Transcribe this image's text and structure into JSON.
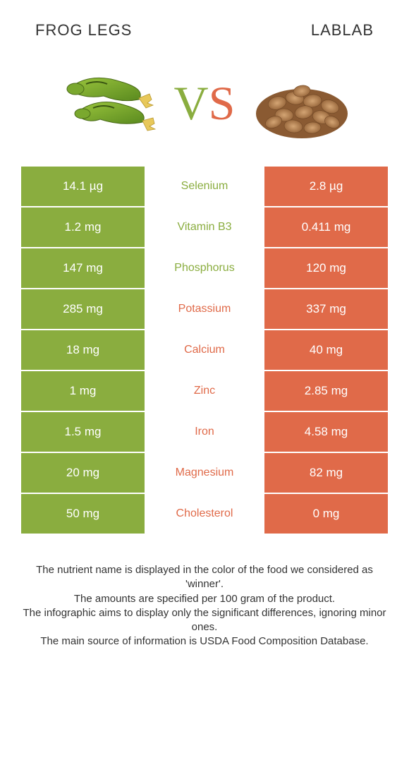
{
  "header": {
    "left": "FROG LEGS",
    "right": "LABLAB"
  },
  "vs": {
    "v": "V",
    "s": "S"
  },
  "colors": {
    "green": "#8aad3f",
    "orange": "#e06a49",
    "white": "#ffffff",
    "text": "#333333"
  },
  "rows": [
    {
      "left": "14.1 µg",
      "mid": "Selenium",
      "right": "2.8 µg",
      "winner": "green"
    },
    {
      "left": "1.2 mg",
      "mid": "Vitamin B3",
      "right": "0.411 mg",
      "winner": "green"
    },
    {
      "left": "147 mg",
      "mid": "Phosphorus",
      "right": "120 mg",
      "winner": "green"
    },
    {
      "left": "285 mg",
      "mid": "Potassium",
      "right": "337 mg",
      "winner": "orange"
    },
    {
      "left": "18 mg",
      "mid": "Calcium",
      "right": "40 mg",
      "winner": "orange"
    },
    {
      "left": "1 mg",
      "mid": "Zinc",
      "right": "2.85 mg",
      "winner": "orange"
    },
    {
      "left": "1.5 mg",
      "mid": "Iron",
      "right": "4.58 mg",
      "winner": "orange"
    },
    {
      "left": "20 mg",
      "mid": "Magnesium",
      "right": "82 mg",
      "winner": "orange"
    },
    {
      "left": "50 mg",
      "mid": "Cholesterol",
      "right": "0 mg",
      "winner": "orange"
    }
  ],
  "footer": {
    "l1": "The nutrient name is displayed in the color of the food we considered as 'winner'.",
    "l2": "The amounts are specified per 100 gram of the product.",
    "l3": "The infographic aims to display only the significant differences, ignoring minor ones.",
    "l4": "The main source of information is USDA Food Composition Database."
  }
}
